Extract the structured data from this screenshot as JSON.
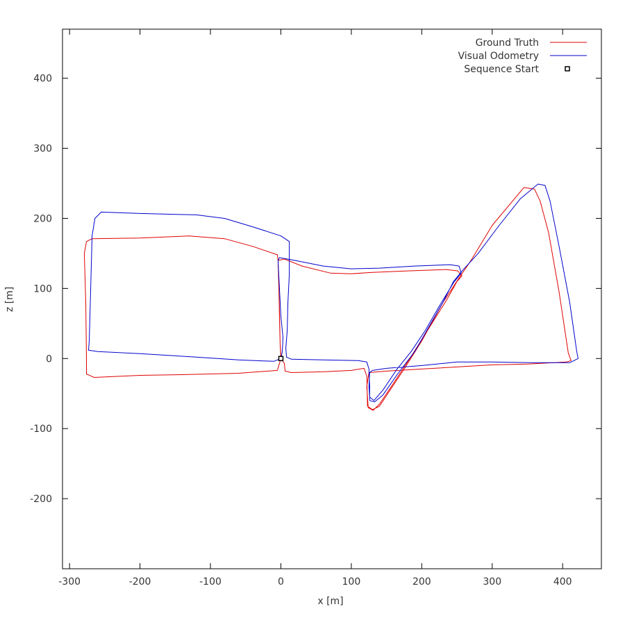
{
  "chart_data": {
    "type": "line",
    "xlabel": "x [m]",
    "ylabel": "z [m]",
    "xlim": [
      -310,
      455
    ],
    "ylim": [
      -300,
      470
    ],
    "xticks": [
      -300,
      -200,
      -100,
      0,
      100,
      200,
      300,
      400
    ],
    "yticks": [
      -200,
      -100,
      0,
      100,
      200,
      300,
      400
    ],
    "grid": false,
    "legend_position": "top-right",
    "series": [
      {
        "name": "Ground Truth",
        "color": "#e00000",
        "points": [
          [
            0,
            0
          ],
          [
            -5,
            -17
          ],
          [
            -60,
            -21
          ],
          [
            -140,
            -23
          ],
          [
            -200,
            -24
          ],
          [
            -265,
            -27
          ],
          [
            -276,
            -22
          ],
          [
            -276,
            0
          ],
          [
            -277,
            80
          ],
          [
            -279,
            150
          ],
          [
            -276,
            167
          ],
          [
            -268,
            171
          ],
          [
            -200,
            172
          ],
          [
            -130,
            175
          ],
          [
            -80,
            171
          ],
          [
            -40,
            160
          ],
          [
            -5,
            148
          ],
          [
            -4,
            140
          ],
          [
            -2,
            70
          ],
          [
            -1,
            20
          ],
          [
            0,
            0
          ],
          [
            5,
            -7
          ],
          [
            6,
            -18
          ],
          [
            15,
            -20
          ],
          [
            60,
            -19
          ],
          [
            100,
            -17
          ],
          [
            118,
            -14
          ],
          [
            122,
            -25
          ],
          [
            123,
            -68
          ],
          [
            130,
            -73
          ],
          [
            140,
            -68
          ],
          [
            155,
            -45
          ],
          [
            175,
            -15
          ],
          [
            200,
            25
          ],
          [
            230,
            80
          ],
          [
            255,
            118
          ],
          [
            270,
            140
          ],
          [
            300,
            190
          ],
          [
            345,
            244
          ],
          [
            360,
            242
          ],
          [
            368,
            225
          ],
          [
            380,
            180
          ],
          [
            395,
            95
          ],
          [
            408,
            8
          ],
          [
            412,
            -3
          ],
          [
            405,
            -5
          ],
          [
            350,
            -8
          ],
          [
            300,
            -9
          ],
          [
            250,
            -12
          ],
          [
            200,
            -15
          ],
          [
            150,
            -18
          ],
          [
            125,
            -20
          ],
          [
            122,
            -40
          ],
          [
            124,
            -70
          ],
          [
            131,
            -74
          ],
          [
            140,
            -65
          ],
          [
            160,
            -35
          ],
          [
            185,
            3
          ],
          [
            210,
            43
          ],
          [
            235,
            83
          ],
          [
            250,
            110
          ],
          [
            257,
            118
          ],
          [
            251,
            125
          ],
          [
            235,
            127
          ],
          [
            180,
            125
          ],
          [
            130,
            123
          ],
          [
            100,
            121
          ],
          [
            70,
            122
          ],
          [
            30,
            132
          ],
          [
            5,
            142
          ],
          [
            -4,
            140
          ],
          [
            -3,
            110
          ],
          [
            -2,
            60
          ],
          [
            -1,
            20
          ],
          [
            0,
            5
          ],
          [
            0,
            0
          ]
        ]
      },
      {
        "name": "Visual Odometry",
        "color": "#0000cc",
        "points": [
          [
            0,
            0
          ],
          [
            -10,
            -4
          ],
          [
            -60,
            -2
          ],
          [
            -120,
            2
          ],
          [
            -200,
            7
          ],
          [
            -260,
            10
          ],
          [
            -273,
            12
          ],
          [
            -272,
            25
          ],
          [
            -270,
            100
          ],
          [
            -268,
            175
          ],
          [
            -264,
            200
          ],
          [
            -255,
            209
          ],
          [
            -200,
            207
          ],
          [
            -120,
            205
          ],
          [
            -80,
            200
          ],
          [
            -40,
            188
          ],
          [
            0,
            175
          ],
          [
            12,
            167
          ],
          [
            12,
            120
          ],
          [
            10,
            80
          ],
          [
            9,
            40
          ],
          [
            7,
            15
          ],
          [
            8,
            2
          ],
          [
            15,
            -1
          ],
          [
            60,
            -2
          ],
          [
            110,
            -3
          ],
          [
            122,
            -5
          ],
          [
            125,
            -15
          ],
          [
            126,
            -40
          ],
          [
            126,
            -60
          ],
          [
            133,
            -62
          ],
          [
            145,
            -52
          ],
          [
            165,
            -23
          ],
          [
            190,
            10
          ],
          [
            210,
            45
          ],
          [
            230,
            80
          ],
          [
            245,
            110
          ],
          [
            260,
            128
          ],
          [
            280,
            150
          ],
          [
            310,
            190
          ],
          [
            340,
            228
          ],
          [
            365,
            249
          ],
          [
            375,
            247
          ],
          [
            382,
            225
          ],
          [
            395,
            160
          ],
          [
            410,
            80
          ],
          [
            420,
            10
          ],
          [
            422,
            0
          ],
          [
            410,
            -6
          ],
          [
            360,
            -6
          ],
          [
            300,
            -5
          ],
          [
            250,
            -5
          ],
          [
            200,
            -10
          ],
          [
            150,
            -14
          ],
          [
            130,
            -17
          ],
          [
            126,
            -20
          ],
          [
            125,
            -40
          ],
          [
            126,
            -55
          ],
          [
            132,
            -60
          ],
          [
            145,
            -45
          ],
          [
            165,
            -15
          ],
          [
            185,
            10
          ],
          [
            205,
            40
          ],
          [
            225,
            75
          ],
          [
            245,
            108
          ],
          [
            256,
            122
          ],
          [
            253,
            132
          ],
          [
            240,
            134
          ],
          [
            190,
            132
          ],
          [
            140,
            129
          ],
          [
            100,
            128
          ],
          [
            60,
            132
          ],
          [
            20,
            140
          ],
          [
            -2,
            144
          ],
          [
            -4,
            140
          ],
          [
            -2,
            100
          ],
          [
            0,
            60
          ],
          [
            3,
            30
          ],
          [
            2,
            10
          ],
          [
            0,
            0
          ]
        ]
      }
    ],
    "markers": [
      {
        "name": "Sequence Start",
        "x": 0,
        "y": 0,
        "symbol": "open-square",
        "color": "#000000"
      }
    ]
  }
}
